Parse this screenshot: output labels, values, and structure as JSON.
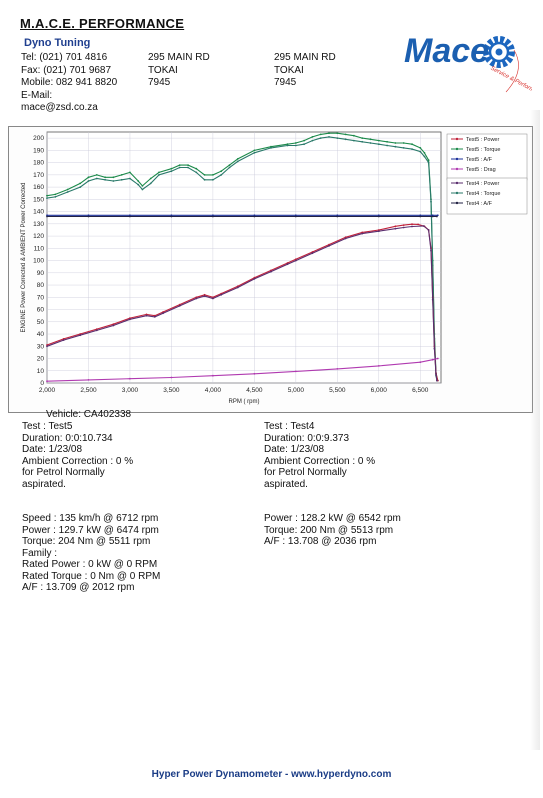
{
  "header": {
    "company": "M.A.C.E. PERFORMANCE",
    "subtitle": "Dyno Tuning",
    "tel": "Tel: (021) 701 4816",
    "fax": "Fax: (021) 701 9687",
    "mobile": "Mobile: 082 941 8820",
    "email_label": "E-Mail:",
    "email": "mace@zsd.co.za",
    "address1": [
      "295 MAIN RD",
      "TOKAI",
      "7945"
    ],
    "address2": [
      "295 MAIN RD",
      "TOKAI",
      "7945"
    ]
  },
  "logo": {
    "text": "Mace",
    "tagline": "Service & Performance",
    "colors": {
      "primary": "#1b5fb0",
      "gear": "#1c66bf",
      "tagline": "#d8302c"
    }
  },
  "chart_data": {
    "type": "line",
    "xlabel": "RPM ( rpm)",
    "ylabel": "ENGINE Power Corrected & AMBIENT Power Corrected",
    "xlim": [
      2000,
      6750
    ],
    "ylim": [
      0,
      205
    ],
    "x_ticks": [
      "2,000",
      "2,500",
      "3,000",
      "3,500",
      "4,000",
      "4,500",
      "5,000",
      "5,500",
      "6,000",
      "6,500"
    ],
    "x_tick_values": [
      2000,
      2500,
      3000,
      3500,
      4000,
      4500,
      5000,
      5500,
      6000,
      6500
    ],
    "y_ticks": [
      "0",
      "10",
      "20",
      "30",
      "40",
      "50",
      "60",
      "70",
      "80",
      "90",
      "100",
      "110",
      "120",
      "130",
      "140",
      "150",
      "160",
      "170",
      "180",
      "190",
      "200"
    ],
    "y_tick_values": [
      0,
      10,
      20,
      30,
      40,
      50,
      60,
      70,
      80,
      90,
      100,
      110,
      120,
      130,
      140,
      150,
      160,
      170,
      180,
      190,
      200
    ],
    "grid": true,
    "legend_groups": [
      {
        "entries": [
          {
            "name": "Test5 : Power",
            "color": "#c0213a"
          },
          {
            "name": "Test5 : Torque",
            "color": "#1b8a4a"
          },
          {
            "name": "Test5 : A/F",
            "color": "#1b2f9a"
          },
          {
            "name": "Test5 : Drag",
            "color": "#b03ab0"
          }
        ]
      },
      {
        "entries": [
          {
            "name": "Test4 : Power",
            "color": "#5a2d6e"
          },
          {
            "name": "Test4 : Torque",
            "color": "#2a7a6a"
          },
          {
            "name": "Test4 : A/F",
            "color": "#222244"
          }
        ]
      }
    ],
    "series": [
      {
        "name": "Test5 : Torque",
        "color": "#1b8a4a",
        "x": [
          2000,
          2100,
          2250,
          2400,
          2500,
          2600,
          2700,
          2800,
          2900,
          3000,
          3100,
          3150,
          3250,
          3350,
          3500,
          3600,
          3700,
          3800,
          3900,
          4000,
          4100,
          4200,
          4300,
          4500,
          4700,
          4900,
          5000,
          5100,
          5200,
          5300,
          5400,
          5500,
          5600,
          5700,
          5800,
          5900,
          6000,
          6100,
          6200,
          6300,
          6400,
          6500,
          6550,
          6600,
          6630,
          6650,
          6670,
          6690,
          6712
        ],
        "y": [
          153,
          154,
          158,
          163,
          168,
          170,
          168,
          168,
          170,
          172,
          165,
          161,
          167,
          172,
          175,
          178,
          178,
          175,
          170,
          170,
          173,
          178,
          183,
          190,
          193,
          195,
          196,
          198,
          201,
          203,
          204,
          204,
          203,
          202,
          200,
          199,
          198,
          197,
          196,
          196,
          195,
          192,
          188,
          182,
          150,
          100,
          40,
          8,
          2
        ]
      },
      {
        "name": "Test4 : Torque",
        "color": "#2a7a6a",
        "x": [
          2000,
          2100,
          2250,
          2400,
          2500,
          2600,
          2700,
          2800,
          2900,
          3000,
          3100,
          3150,
          3250,
          3350,
          3500,
          3600,
          3700,
          3800,
          3900,
          4000,
          4100,
          4200,
          4300,
          4500,
          4700,
          4900,
          5000,
          5100,
          5200,
          5300,
          5400,
          5500,
          5600,
          5700,
          5800,
          5900,
          6000,
          6100,
          6200,
          6300,
          6400,
          6500,
          6550,
          6600,
          6630,
          6650,
          6670,
          6690,
          6700
        ],
        "y": [
          151,
          152,
          156,
          160,
          165,
          167,
          166,
          165,
          166,
          167,
          162,
          158,
          163,
          170,
          173,
          176,
          176,
          172,
          166,
          166,
          170,
          176,
          181,
          188,
          192,
          194,
          194,
          195,
          198,
          200,
          201,
          200,
          199,
          198,
          197,
          196,
          195,
          194,
          193,
          192,
          191,
          189,
          185,
          180,
          148,
          96,
          36,
          6,
          2
        ]
      },
      {
        "name": "Test5 : Power",
        "color": "#c0213a",
        "x": [
          2000,
          2200,
          2400,
          2600,
          2800,
          3000,
          3200,
          3300,
          3400,
          3600,
          3800,
          3900,
          4000,
          4100,
          4300,
          4500,
          4700,
          4900,
          5000,
          5200,
          5400,
          5600,
          5800,
          6000,
          6200,
          6300,
          6400,
          6474,
          6550,
          6600,
          6630,
          6650,
          6670,
          6690,
          6712
        ],
        "y": [
          31,
          36,
          40,
          44,
          48,
          53,
          56,
          55,
          58,
          64,
          70,
          72,
          70,
          73,
          79,
          86,
          92,
          98,
          101,
          107,
          113,
          119,
          123,
          125,
          128,
          129,
          129.7,
          129.5,
          128,
          125,
          110,
          70,
          30,
          8,
          2
        ]
      },
      {
        "name": "Test4 : Power",
        "color": "#5a2d6e",
        "x": [
          2000,
          2200,
          2400,
          2600,
          2800,
          3000,
          3200,
          3300,
          3400,
          3600,
          3800,
          3900,
          4000,
          4100,
          4300,
          4500,
          4700,
          4900,
          5000,
          5200,
          5400,
          5600,
          5800,
          6000,
          6200,
          6300,
          6400,
          6542,
          6600,
          6630,
          6650,
          6670,
          6690,
          6700
        ],
        "y": [
          30,
          35,
          39,
          43,
          47,
          52,
          55,
          54,
          57,
          63,
          69,
          71,
          69,
          72,
          78,
          85,
          91,
          97,
          100,
          106,
          112,
          118,
          122,
          124,
          126,
          127,
          127.8,
          128.2,
          125,
          108,
          68,
          28,
          7,
          2
        ]
      },
      {
        "name": "Test5 : A/F",
        "color": "#1b2f9a",
        "x": [
          2000,
          2500,
          3000,
          3500,
          4000,
          4500,
          5000,
          5500,
          6000,
          6500,
          6650,
          6712
        ],
        "y": [
          137,
          137,
          137,
          137,
          137,
          137,
          137,
          137,
          137,
          137,
          137,
          137
        ]
      },
      {
        "name": "Test4 : A/F",
        "color": "#222244",
        "x": [
          2000,
          2500,
          3000,
          3500,
          4000,
          4500,
          5000,
          5500,
          6000,
          6500,
          6650,
          6700
        ],
        "y": [
          136,
          136,
          136,
          136,
          136,
          136,
          136,
          136,
          136,
          136,
          136,
          136
        ]
      },
      {
        "name": "Test5 : Drag",
        "color": "#b03ab0",
        "x": [
          2000,
          2500,
          3000,
          3500,
          4000,
          4500,
          5000,
          5500,
          6000,
          6500,
          6650,
          6712
        ],
        "y": [
          1.5,
          2.5,
          3.5,
          4.5,
          6,
          7.5,
          9.5,
          11.5,
          14,
          17,
          19,
          20
        ]
      }
    ]
  },
  "test5": {
    "vehicle": "Vehicle: CA402338",
    "test": "Test    : Test5",
    "duration": "Duration: 0:0:10.734",
    "date": "Date:  1/23/08",
    "ambient": "Ambient Correction : 0 %",
    "fuel": " for Petrol Normally",
    "aspirated": "aspirated.",
    "speed": "Speed : 135 km/h @ 6712 rpm",
    "power": "Power : 129.7 kW @ 6474 rpm",
    "torque": "Torque: 204 Nm @ 5511 rpm",
    "family": "Family :",
    "rated_power": "Rated Power : 0 kW @ 0 RPM",
    "rated_torque": "Rated Torque : 0 Nm @ 0 RPM",
    "af": "A/F : 13.709 @ 2012 rpm"
  },
  "test4": {
    "test": "Test    : Test4",
    "duration": "Duration: 0:0:9.373",
    "date": "Date:  1/23/08",
    "ambient": "Ambient Correction : 0 %",
    "fuel": " for Petrol Normally",
    "aspirated": "aspirated.",
    "power": "Power : 128.2 kW @ 6542 rpm",
    "torque": "Torque: 200 Nm @ 5513 rpm",
    "af": "A/F : 13.708 @ 2036 rpm"
  },
  "footer": {
    "text": "Hyper Power Dynamometer  -  www.hyperdyno.com"
  }
}
